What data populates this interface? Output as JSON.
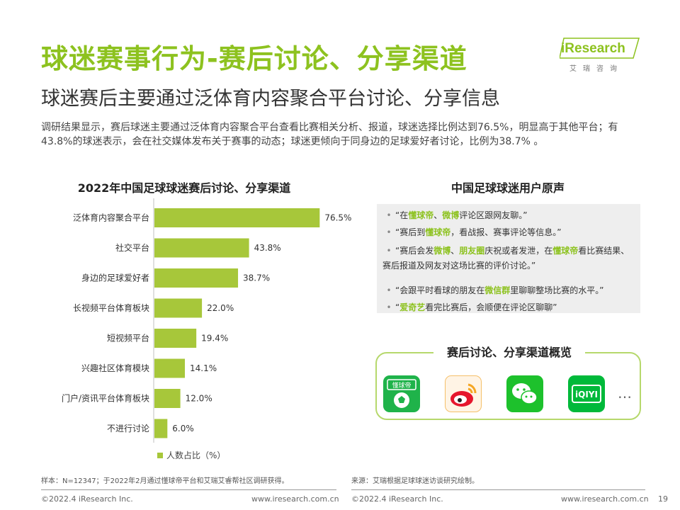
{
  "header": {
    "title": "球迷赛事行为-赛后讨论、分享渠道",
    "subtitle": "球迷赛后主要通过泛体育内容聚合平台讨论、分享信息",
    "intro": "调研结果显示，赛后球迷主要通过泛体育内容聚合平台查看比赛相关分析、报道，球迷选择比例达到76.5%，明显高于其他平台；有43.8%的球迷表示，会在社交媒体发布关于赛事的动态；球迷更倾向于同身边的足球爱好者讨论，比例为38.7% 。"
  },
  "logo": {
    "text": "iResearch",
    "cn": "艾瑞咨询"
  },
  "chart_data": {
    "type": "bar",
    "orientation": "horizontal",
    "title": "2022年中国足球球迷赛后讨论、分享渠道",
    "categories": [
      "泛体育内容聚合平台",
      "社交平台",
      "身边的足球爱好者",
      "长视频平台体育板块",
      "短视频平台",
      "兴趣社区体育模块",
      "门户/资讯平台体育板块",
      "不进行讨论"
    ],
    "series": [
      {
        "name": "人数占比（%）",
        "values": [
          76.5,
          43.8,
          38.7,
          22.0,
          19.4,
          14.1,
          12.0,
          6.0
        ]
      }
    ],
    "value_labels": [
      "76.5%",
      "43.8%",
      "38.7%",
      "22.0%",
      "19.4%",
      "14.1%",
      "12.0%",
      "6.0%"
    ],
    "xlim": [
      0,
      100
    ],
    "grid": false,
    "legend_position": "bottom",
    "bar_color": "#a7c73a"
  },
  "legend_label": "人数占比（%）",
  "voices": {
    "title": "中国足球球迷用户原声",
    "items": [
      [
        [
          "“在",
          false
        ],
        [
          "懂球帝",
          true
        ],
        [
          "、",
          false
        ],
        [
          "微博",
          true
        ],
        [
          "评论区跟网友聊。”",
          false
        ]
      ],
      [
        [
          "“赛后到",
          false
        ],
        [
          "懂球帝",
          true
        ],
        [
          "，看战报、赛事评论等信息。”",
          false
        ]
      ],
      [
        [
          "“赛后会发",
          false
        ],
        [
          "微博",
          true
        ],
        [
          "、",
          false
        ],
        [
          "朋友圈",
          true
        ],
        [
          "庆祝或者发泄，在",
          false
        ],
        [
          "懂球帝",
          true
        ],
        [
          "看比赛结果、赛后报道及网友对这场比赛的评价讨论。”",
          false
        ]
      ],
      [
        [
          "“会跟平时看球的朋友在",
          false
        ],
        [
          "微信群",
          true
        ],
        [
          "里聊聊整场比赛的水平。”",
          false
        ]
      ],
      [
        [
          "“",
          false
        ],
        [
          "爱奇艺",
          true
        ],
        [
          "看完比赛后，会顺便在评论区聊聊”",
          false
        ]
      ]
    ]
  },
  "channels": {
    "title": "赛后讨论、分享渠道概览",
    "dongqiudi_label": "懂球帝",
    "iqiyi_label": "iQIYI",
    "more": "…"
  },
  "footnotes": {
    "sample": "样本：N=12347；于2022年2月通过懂球帝平台和艾瑞艾睿帮社区调研获得。",
    "source": "来源：艾瑞根据足球球迷访谈研究绘制。"
  },
  "footer": {
    "copyright": "©2022.4 iResearch Inc.",
    "url": "www.iresearch.com.cn",
    "page": "19"
  },
  "colors": {
    "accent": "#8dc21f",
    "bar": "#a7c73a"
  }
}
